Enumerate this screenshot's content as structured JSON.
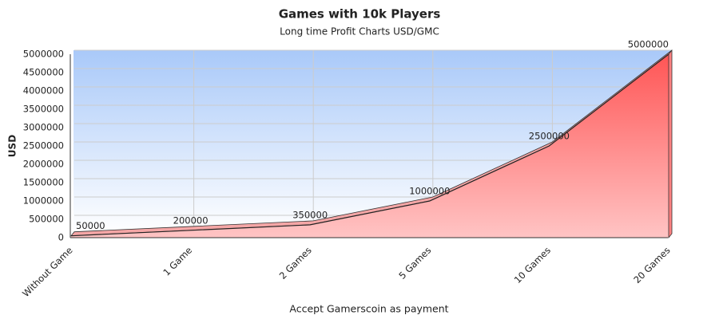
{
  "chart_data": {
    "type": "area",
    "title": "Games with 10k Players",
    "subtitle": "Long time Profit Charts USD/GMC",
    "x_label": "Accept Gamerscoin as payment",
    "y_label": "USD",
    "categories": [
      "Without Game",
      "1 Game",
      "2 Games",
      "5 Games",
      "10 Games",
      "20 Games"
    ],
    "values": [
      50000,
      200000,
      350000,
      1000000,
      2500000,
      5000000
    ],
    "color": "#ff5a5a",
    "ylim": [
      0,
      5000000
    ],
    "yticks": [
      0,
      500000,
      1000000,
      1500000,
      2000000,
      2500000,
      3000000,
      3500000,
      4000000,
      4500000,
      5000000
    ],
    "grid": true
  }
}
